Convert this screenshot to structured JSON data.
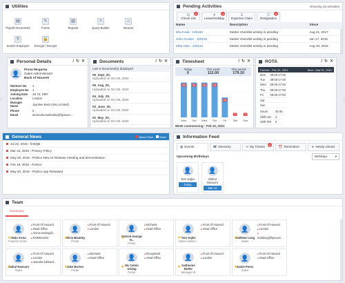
{
  "utilities": {
    "title": "Utilities",
    "items": [
      {
        "label": "Payroll Documents",
        "icon": "document-icon"
      },
      {
        "label": "Forms",
        "icon": "form-icon"
      },
      {
        "label": "Reports",
        "icon": "chart-icon"
      },
      {
        "label": "Query Builder",
        "icon": "query-icon"
      },
      {
        "label": "Intranet",
        "icon": "network-icon"
      },
      {
        "label": "Search Employee",
        "icon": "search-icon"
      },
      {
        "label": "Encrypt / Decrypt",
        "icon": "lock-icon"
      }
    ]
  },
  "pending": {
    "title": "Pending Activities",
    "showing": "Showing 10 activities",
    "tabs": [
      {
        "label": "Check List",
        "badge": "9"
      },
      {
        "label": "Leave/Holiday",
        "badge": "4"
      },
      {
        "label": "Expense Claim",
        "badge": ""
      },
      {
        "label": "Resignation",
        "badge": "6"
      }
    ],
    "columns": [
      "Name",
      "Description",
      "Since"
    ],
    "rows": [
      {
        "name": "Ella Cook : 100183",
        "desc": "Starter checklist activity is pending",
        "since": "Aug 21, 2017"
      },
      {
        "name": "John Gcoker : 100152",
        "desc": "Starter checklist activity is pending",
        "since": "Jun 17, 2015"
      },
      {
        "name": "Kiba Clan : 100124",
        "desc": "Starter checklist activity is pending",
        "since": "Aug 10, 2015"
      }
    ]
  },
  "personal": {
    "title": "Personal Details",
    "name": "Fiona Mcgarey",
    "role": "Sales Administrator",
    "office": "Back of House5",
    "fields": [
      {
        "k": "Workers No",
        "v": "1"
      },
      {
        "k": "Employee No",
        "v": "1"
      },
      {
        "k": "Joining Date",
        "v": "Jul 10, 1997"
      },
      {
        "k": "Location",
        "v": "London"
      },
      {
        "k": "Manager Name",
        "v": "Jaynitee Back (Also Limited)"
      },
      {
        "k": "Phone",
        "v": "0"
      },
      {
        "k": "Email",
        "v": "devendra.kushvaha@hpsourc..."
      }
    ]
  },
  "documents": {
    "title": "Documents",
    "sub": "Last 5 document(s) displayed",
    "items": [
      {
        "title": "06_Sept_20,",
        "date": "Uploaded on Oct 08, 2020"
      },
      {
        "title": "05_Aug_20,",
        "date": "Uploaded on Oct 08, 2020"
      },
      {
        "title": "04_July_20,",
        "date": "Uploaded on Oct 08, 2020"
      },
      {
        "title": "03_June_20,",
        "date": "Uploaded on Oct 08, 2020"
      },
      {
        "title": "02_May_20,",
        "date": "Uploaded on Oct 08, 2020"
      }
    ]
  },
  "timesheet": {
    "title": "Timesheet",
    "heads": [
      {
        "label": "Today",
        "value": "0"
      },
      {
        "label": "This week",
        "value": "112.00"
      },
      {
        "label": "This period",
        "value": "179.10"
      }
    ],
    "footer": "Week commencing : Feb 22, 2021"
  },
  "chart_data": {
    "type": "bar",
    "categories": [
      "Mon",
      "Tue",
      "Wed",
      "Thu",
      "Fri",
      "Sat",
      "Sun"
    ],
    "values": [
      28,
      28,
      28,
      28,
      16,
      0,
      0
    ],
    "data_labels": [
      "28",
      "28",
      "28",
      "28",
      "16",
      "0",
      "0"
    ],
    "title": "",
    "xlabel": "",
    "ylabel": "",
    "ylim": [
      0,
      30
    ],
    "bar_color": "#5aa2e0",
    "label_color": "#e34a4a",
    "grid": true
  },
  "rota": {
    "title": "ROTA",
    "current": "Current - Feb 22, 2021",
    "next": "Next - Mar 01, 2021",
    "days": [
      {
        "d": "Mon",
        "t": "09:00-17:00"
      },
      {
        "d": "Tue",
        "t": "09:00-17:00"
      },
      {
        "d": "Wed",
        "t": "09:00-17:00"
      },
      {
        "d": "Thu",
        "t": "09:00-17:00"
      },
      {
        "d": "Fri",
        "t": "09:00-17:00"
      },
      {
        "d": "Sat",
        "t": ""
      },
      {
        "d": "Sun",
        "t": ""
      }
    ],
    "summary": [
      {
        "k": "Hours",
        "v": "40.00"
      },
      {
        "k": "Shift AM",
        "v": "3"
      },
      {
        "k": "Shift PM",
        "v": "0"
      }
    ]
  },
  "news": {
    "title": "General News",
    "legend_flash": "News Flash",
    "legend_news": "News",
    "items": [
      "Jul 22, 2016 - firstQB",
      "Mar 23, 2016 - Privacy Policy",
      "May 20, 2016 - Portico New UI Release meeting and demonstration",
      "Feb 18, 2016 - Portico",
      "May 20, 2015 - Portico App Released"
    ]
  },
  "feed": {
    "title": "Information Feed",
    "tabs": [
      {
        "label": "Events",
        "badge": ""
      },
      {
        "label": "Directory",
        "badge": ""
      },
      {
        "label": "My Tickets",
        "badge": "0"
      },
      {
        "label": "Reminders",
        "badge": ""
      },
      {
        "label": "Newly Joined",
        "badge": ""
      }
    ],
    "section": "Upcoming Birthdays",
    "select": "Birthdays",
    "birthdays": [
      {
        "name": "Tom Sujko",
        "when": "Today"
      },
      {
        "name": "Mahul Ransom",
        "when": "Mar 14"
      }
    ]
  },
  "team": {
    "title": "Team",
    "tab": "Summary",
    "members": [
      {
        "name": "Mala Arora",
        "role": "Finance Contr...",
        "l1": "Front Of House3",
        "l2": "Head Office",
        "l3": "mirna.ransing@...",
        "l4": "9730614224"
      },
      {
        "name": "Olivia Blainley",
        "role": "Porter",
        "l1": "Front Of House3",
        "l2": "London",
        "l3": "",
        "l4": ""
      },
      {
        "name": "Patrick George N...",
        "role": "Porter",
        "l1": "Kitchen5",
        "l2": "Head Office",
        "l3": "",
        "l4": ""
      },
      {
        "name": "Tom Sujko",
        "role": "Sales Admini...",
        "l1": "Front Of House3",
        "l2": "Head Office",
        "l3": "",
        "l4": ""
      },
      {
        "name": "Matthew Long",
        "role": "Sales",
        "l1": "Front Of House3",
        "l2": "London",
        "l3": "mattlong@hpsourc...",
        "l4": ""
      },
      {
        "name": "Mahul Ransom",
        "role": "Sales",
        "l1": "Front Of House3",
        "l2": "London",
        "l3": "ravindra.lokhand...",
        "l4": ""
      },
      {
        "name": "Jake Burton",
        "role": "Porter",
        "l1": "Kitchen5",
        "l2": "Head Office",
        "l3": "",
        "l4": ""
      },
      {
        "name": "Mc Celvin Undag",
        "role": "Porter",
        "l1": "Reception6",
        "l2": "Head Office",
        "l3": "",
        "l4": ""
      },
      {
        "name": "Katherine Butler",
        "role": "Manager B",
        "l1": "Front Of House3",
        "l2": "London",
        "l3": "",
        "l4": ""
      },
      {
        "name": "Jamie Perez",
        "role": "Sales",
        "l1": "Front Of House3",
        "l2": "Head Office",
        "l3": "",
        "l4": ""
      }
    ]
  }
}
